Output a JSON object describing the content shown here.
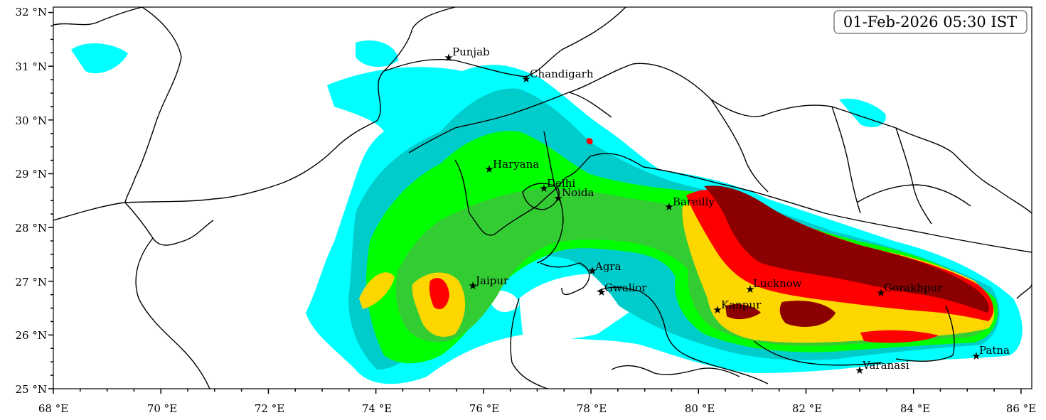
{
  "map": {
    "timestamp": "01-Feb-2026 05:30 IST",
    "x_ticks": [
      "68 °E",
      "70 °E",
      "72 °E",
      "74 °E",
      "76 °E",
      "78 °E",
      "80 °E",
      "82 °E",
      "84 °E",
      "86 °E"
    ],
    "y_ticks": [
      "32 °N",
      "31 °N",
      "30 °N",
      "29 °N",
      "28 °N",
      "27 °N",
      "26 °N",
      "25 °N"
    ],
    "cities": [
      {
        "name": "Punjab"
      },
      {
        "name": "Chandigarh"
      },
      {
        "name": "Haryana"
      },
      {
        "name": "Delhi"
      },
      {
        "name": "Noida"
      },
      {
        "name": "Bareilly"
      },
      {
        "name": "Agra"
      },
      {
        "name": "Jaipur"
      },
      {
        "name": "Gwalior"
      },
      {
        "name": "Lucknow"
      },
      {
        "name": "Kanpur"
      },
      {
        "name": "Gorakhpur"
      },
      {
        "name": "Patna"
      },
      {
        "name": "Varanasi"
      }
    ],
    "colors": {
      "level1": "#00ffff",
      "level2": "#00cccc",
      "level3": "#00ff00",
      "level4": "#33cc33",
      "level5": "#ffd700",
      "level6": "#ff0000",
      "level7": "#8b0000"
    }
  }
}
